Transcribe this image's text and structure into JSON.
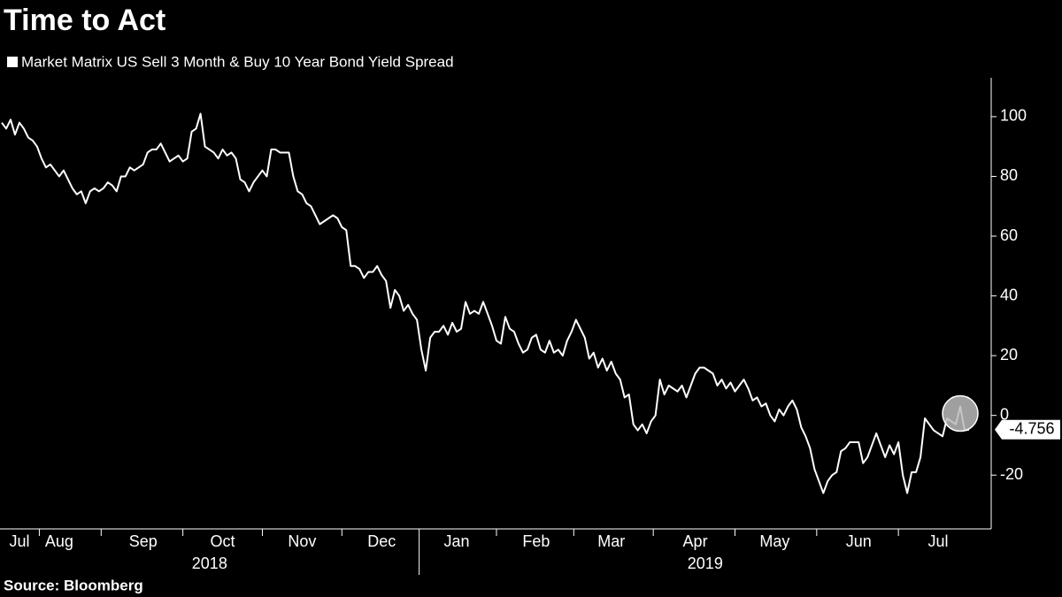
{
  "chart_data": {
    "type": "line",
    "title": "Time to Act",
    "source": "Source: Bloomberg",
    "categories": [
      null,
      null,
      null,
      null,
      "Jul",
      null,
      null,
      null,
      null,
      null,
      null,
      null,
      null,
      "Aug",
      null,
      null,
      null,
      null,
      null,
      null,
      null,
      null,
      null,
      null,
      null,
      null,
      null,
      null,
      null,
      null,
      null,
      null,
      "Sep",
      null,
      null,
      null,
      null,
      null,
      null,
      null,
      null,
      null,
      null,
      null,
      null,
      null,
      null,
      null,
      null,
      null,
      "Oct",
      null,
      null,
      null,
      null,
      null,
      null,
      null,
      null,
      null,
      null,
      null,
      null,
      null,
      null,
      null,
      null,
      null,
      "Nov",
      null,
      null,
      null,
      null,
      null,
      null,
      null,
      null,
      null,
      null,
      null,
      null,
      null,
      null,
      null,
      null,
      null,
      "Dec",
      null,
      null,
      null,
      null,
      null,
      null,
      null,
      null,
      null,
      null,
      null,
      null,
      null,
      null,
      null,
      null,
      "Jan",
      null,
      null,
      null,
      null,
      null,
      null,
      null,
      null,
      null,
      null,
      null,
      null,
      null,
      null,
      null,
      null,
      null,
      "Feb",
      null,
      null,
      null,
      null,
      null,
      null,
      null,
      null,
      null,
      null,
      null,
      null,
      null,
      null,
      null,
      null,
      "Mar",
      null,
      null,
      null,
      null,
      null,
      null,
      null,
      null,
      null,
      null,
      null,
      null,
      null,
      null,
      null,
      null,
      null,
      null,
      "Apr",
      null,
      null,
      null,
      null,
      null,
      null,
      null,
      null,
      null,
      null,
      null,
      null,
      null,
      null,
      null,
      null,
      null,
      "May",
      null,
      null,
      null,
      null,
      null,
      null,
      null,
      null,
      null,
      null,
      null,
      null,
      null,
      null,
      null,
      null,
      null,
      null,
      "Jun",
      null,
      null,
      null,
      null,
      null,
      null,
      null,
      null,
      null,
      null,
      null,
      null,
      null,
      null,
      null,
      null,
      null,
      "Jul",
      null,
      null,
      null,
      null,
      null,
      null,
      null
    ],
    "years": [
      "2018",
      "2019"
    ],
    "series": [
      {
        "name": "Market Matrix US Sell 3 Month & Buy 10 Year Bond Yield Spread",
        "color": "#ffffff",
        "values": [
          98,
          96,
          99,
          94,
          98,
          96,
          93,
          92,
          90,
          86,
          83,
          84,
          82,
          80,
          82,
          79,
          76,
          74,
          75,
          71,
          75,
          76,
          75,
          76,
          78,
          77,
          75,
          80,
          80,
          83,
          82,
          83,
          84,
          88,
          89,
          89,
          91,
          88,
          85,
          86,
          87,
          85,
          86,
          95,
          96,
          101,
          90,
          89,
          88,
          86,
          89,
          87,
          88,
          86,
          79,
          78,
          75,
          78,
          80,
          82,
          80,
          89,
          89,
          88,
          88,
          88,
          80,
          75,
          74,
          71,
          70,
          67,
          64,
          65,
          66,
          67,
          66,
          63,
          62,
          50,
          50,
          49,
          46,
          48,
          48,
          50,
          47,
          45,
          36,
          42,
          40,
          35,
          37,
          34,
          32,
          22,
          15,
          26,
          28,
          28,
          30,
          27,
          31,
          28,
          29,
          38,
          34,
          35,
          34,
          38,
          34,
          30,
          25,
          24,
          33,
          29,
          28,
          24,
          21,
          22,
          26,
          27,
          22,
          21,
          25,
          21,
          22,
          20,
          25,
          28,
          32,
          29,
          26,
          19,
          21,
          16,
          19,
          15,
          18,
          14,
          12,
          6,
          7,
          -3,
          -5,
          -3,
          -6,
          -2,
          0,
          12,
          7,
          10,
          9,
          8,
          10,
          6,
          10,
          14,
          16,
          16,
          15,
          14,
          10,
          12,
          9,
          11,
          8,
          10,
          12,
          9,
          5,
          6,
          3,
          4,
          0,
          -2,
          2,
          0,
          3,
          5,
          2,
          -4,
          -7,
          -11,
          -18,
          -22,
          -26,
          -22,
          -20,
          -19,
          -12,
          -11,
          -9,
          -9,
          -9,
          -16,
          -14,
          -10,
          -6,
          -10,
          -14,
          -10,
          -13,
          -9,
          -20,
          -26,
          -19,
          -19,
          -14,
          -1,
          -3,
          -5,
          -6,
          -7,
          -1,
          -2,
          -3,
          3,
          -5,
          -4.756
        ]
      }
    ],
    "ylim": [
      -38,
      113
    ],
    "yticks": [
      -20,
      0,
      20,
      40,
      60,
      80,
      100
    ],
    "grid": false
  }
}
